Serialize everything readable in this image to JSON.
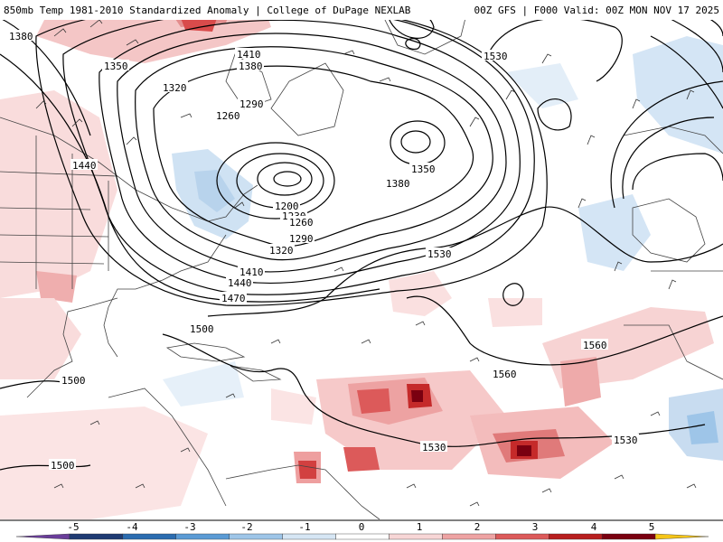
{
  "header": {
    "left": "850mb Temp 1981-2010 Standardized Anomaly | College of DuPage NEXLAB",
    "right": "00Z GFS | F000 Valid: 00Z MON NOV 17 2025"
  },
  "contour_labels": [
    "1380",
    "1410",
    "1380",
    "1350",
    "1530",
    "1320",
    "1290",
    "1260",
    "1440",
    "1200",
    "1230",
    "1260",
    "1290",
    "1320",
    "1350",
    "1380",
    "1410",
    "1440",
    "1470",
    "1530",
    "1500",
    "1560",
    "1560",
    "1500",
    "1500",
    "1530",
    "1530"
  ],
  "colorbar": {
    "ticks": [
      "-5",
      "-4",
      "-3",
      "-2",
      "-1",
      "0",
      "1",
      "2",
      "3",
      "4",
      "5"
    ],
    "colors": [
      "#6a3d9a",
      "#1f3b73",
      "#2b6cb0",
      "#5b9bd5",
      "#9ec5e8",
      "#d6e6f4",
      "#ffffff",
      "#f7d6d6",
      "#eea3a3",
      "#dc5a5a",
      "#b81f1f",
      "#7a0010",
      "#f5c518"
    ]
  }
}
